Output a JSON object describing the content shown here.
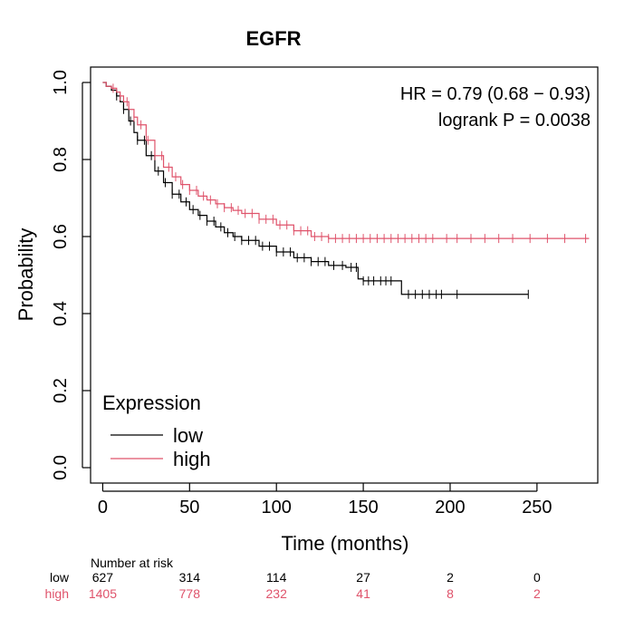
{
  "chart_data": {
    "type": "line",
    "title": "EGFR",
    "xlabel": "Time (months)",
    "ylabel": "Probability",
    "xlim": [
      -7,
      285
    ],
    "ylim": [
      -0.04,
      1.04
    ],
    "x_ticks": [
      0,
      50,
      100,
      150,
      200,
      250
    ],
    "y_ticks": [
      0.0,
      0.2,
      0.4,
      0.6,
      0.8,
      1.0
    ],
    "x_tick_labels": [
      "0",
      "50",
      "100",
      "150",
      "200",
      "250"
    ],
    "y_tick_labels": [
      "0.0",
      "0.2",
      "0.4",
      "0.6",
      "0.8",
      "1.0"
    ],
    "annotations": {
      "hr": "HR = 0.79 (0.68 − 0.93)",
      "logrank": "logrank P = 0.0038"
    },
    "legend": {
      "title": "Expression",
      "position": "bottom-left",
      "entries": [
        "low",
        "high"
      ]
    },
    "series": [
      {
        "name": "low",
        "color": "#000000",
        "x": [
          0,
          2,
          5,
          8,
          10,
          12,
          15,
          18,
          20,
          25,
          30,
          35,
          40,
          45,
          50,
          55,
          60,
          65,
          70,
          75,
          80,
          90,
          100,
          110,
          120,
          130,
          140,
          147,
          150,
          160,
          170,
          172,
          245
        ],
        "y": [
          1.0,
          0.99,
          0.98,
          0.965,
          0.95,
          0.93,
          0.9,
          0.87,
          0.85,
          0.81,
          0.77,
          0.74,
          0.71,
          0.69,
          0.67,
          0.655,
          0.64,
          0.625,
          0.61,
          0.6,
          0.59,
          0.575,
          0.56,
          0.545,
          0.535,
          0.525,
          0.52,
          0.49,
          0.485,
          0.485,
          0.485,
          0.45,
          0.45
        ],
        "censor_x": [
          8,
          12,
          16,
          20,
          24,
          28,
          32,
          36,
          40,
          44,
          48,
          52,
          56,
          60,
          64,
          68,
          72,
          76,
          80,
          84,
          88,
          92,
          96,
          100,
          104,
          108,
          112,
          116,
          120,
          124,
          128,
          133,
          138,
          143,
          146,
          150,
          153,
          156,
          160,
          163,
          166,
          176,
          180,
          184,
          188,
          192,
          195,
          204,
          245
        ]
      },
      {
        "name": "high",
        "color": "#df536b",
        "x": [
          0,
          2,
          5,
          8,
          10,
          12,
          15,
          18,
          20,
          25,
          30,
          35,
          40,
          45,
          50,
          55,
          60,
          65,
          70,
          75,
          80,
          90,
          100,
          110,
          120,
          130,
          140,
          280
        ],
        "y": [
          1.0,
          0.99,
          0.985,
          0.975,
          0.965,
          0.95,
          0.93,
          0.91,
          0.89,
          0.85,
          0.81,
          0.78,
          0.755,
          0.735,
          0.72,
          0.705,
          0.695,
          0.685,
          0.675,
          0.668,
          0.66,
          0.645,
          0.63,
          0.615,
          0.6,
          0.595,
          0.595,
          0.595
        ],
        "censor_x": [
          6,
          10,
          14,
          18,
          22,
          26,
          30,
          34,
          38,
          42,
          46,
          50,
          54,
          58,
          62,
          66,
          70,
          74,
          78,
          82,
          86,
          90,
          94,
          98,
          102,
          106,
          110,
          114,
          118,
          122,
          126,
          130,
          134,
          138,
          142,
          146,
          150,
          154,
          158,
          162,
          166,
          170,
          174,
          178,
          182,
          186,
          190,
          198,
          204,
          212,
          220,
          228,
          236,
          246,
          256,
          266,
          278
        ]
      }
    ],
    "risk_table": {
      "label": "Number at risk",
      "times": [
        0,
        50,
        100,
        150,
        200,
        250
      ],
      "rows": [
        {
          "name": "low",
          "color": "#000000",
          "values": [
            "627",
            "314",
            "114",
            "27",
            "2",
            "0"
          ]
        },
        {
          "name": "high",
          "color": "#df536b",
          "values": [
            "1405",
            "778",
            "232",
            "41",
            "8",
            "2"
          ]
        }
      ]
    }
  }
}
